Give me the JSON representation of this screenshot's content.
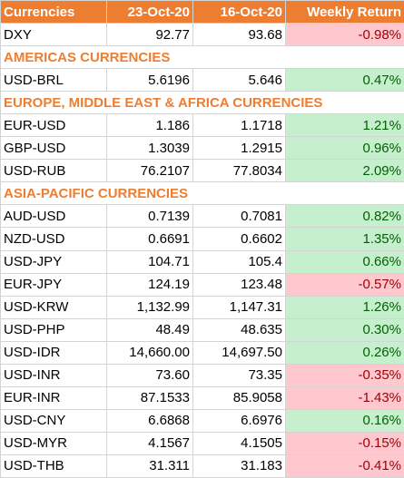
{
  "header": {
    "currencies": "Currencies",
    "date1": "23-Oct-20",
    "date2": "16-Oct-20",
    "weekly_return": "Weekly Return"
  },
  "colors": {
    "accent": "#ed7d31",
    "positive_fill": "#c6efce",
    "positive_text": "#006100",
    "negative_fill": "#ffc7ce",
    "negative_text": "#9c0006"
  },
  "rows": [
    {
      "type": "data",
      "name": "DXY",
      "v1": "92.77",
      "v2": "93.68",
      "ret": "-0.98%",
      "sign": "neg"
    },
    {
      "type": "section",
      "name": "AMERICAS CURRENCIES"
    },
    {
      "type": "data",
      "name": "USD-BRL",
      "v1": "5.6196",
      "v2": "5.646",
      "ret": "0.47%",
      "sign": "pos"
    },
    {
      "type": "section",
      "name": "EUROPE, MIDDLE EAST & AFRICA CURRENCIES"
    },
    {
      "type": "data",
      "name": "EUR-USD",
      "v1": "1.186",
      "v2": "1.1718",
      "ret": "1.21%",
      "sign": "pos"
    },
    {
      "type": "data",
      "name": "GBP-USD",
      "v1": "1.3039",
      "v2": "1.2915",
      "ret": "0.96%",
      "sign": "pos"
    },
    {
      "type": "data",
      "name": "USD-RUB",
      "v1": "76.2107",
      "v2": "77.8034",
      "ret": "2.09%",
      "sign": "pos"
    },
    {
      "type": "section",
      "name": "ASIA-PACIFIC CURRENCIES"
    },
    {
      "type": "data",
      "name": "AUD-USD",
      "v1": "0.7139",
      "v2": "0.7081",
      "ret": "0.82%",
      "sign": "pos"
    },
    {
      "type": "data",
      "name": "NZD-USD",
      "v1": "0.6691",
      "v2": "0.6602",
      "ret": "1.35%",
      "sign": "pos"
    },
    {
      "type": "data",
      "name": "USD-JPY",
      "v1": "104.71",
      "v2": "105.4",
      "ret": "0.66%",
      "sign": "pos"
    },
    {
      "type": "data",
      "name": "EUR-JPY",
      "v1": "124.19",
      "v2": "123.48",
      "ret": "-0.57%",
      "sign": "neg"
    },
    {
      "type": "data",
      "name": "USD-KRW",
      "v1": "1,132.99",
      "v2": "1,147.31",
      "ret": "1.26%",
      "sign": "pos"
    },
    {
      "type": "data",
      "name": "USD-PHP",
      "v1": "48.49",
      "v2": "48.635",
      "ret": "0.30%",
      "sign": "pos"
    },
    {
      "type": "data",
      "name": "USD-IDR",
      "v1": "14,660.00",
      "v2": "14,697.50",
      "ret": "0.26%",
      "sign": "pos"
    },
    {
      "type": "data",
      "name": "USD-INR",
      "v1": "73.60",
      "v2": "73.35",
      "ret": "-0.35%",
      "sign": "neg"
    },
    {
      "type": "data",
      "name": "EUR-INR",
      "v1": "87.1533",
      "v2": "85.9058",
      "ret": "-1.43%",
      "sign": "neg"
    },
    {
      "type": "data",
      "name": "USD-CNY",
      "v1": "6.6868",
      "v2": "6.6976",
      "ret": "0.16%",
      "sign": "pos"
    },
    {
      "type": "data",
      "name": "USD-MYR",
      "v1": "4.1567",
      "v2": "4.1505",
      "ret": "-0.15%",
      "sign": "neg"
    },
    {
      "type": "data",
      "name": "USD-THB",
      "v1": "31.311",
      "v2": "31.183",
      "ret": "-0.41%",
      "sign": "neg"
    }
  ]
}
